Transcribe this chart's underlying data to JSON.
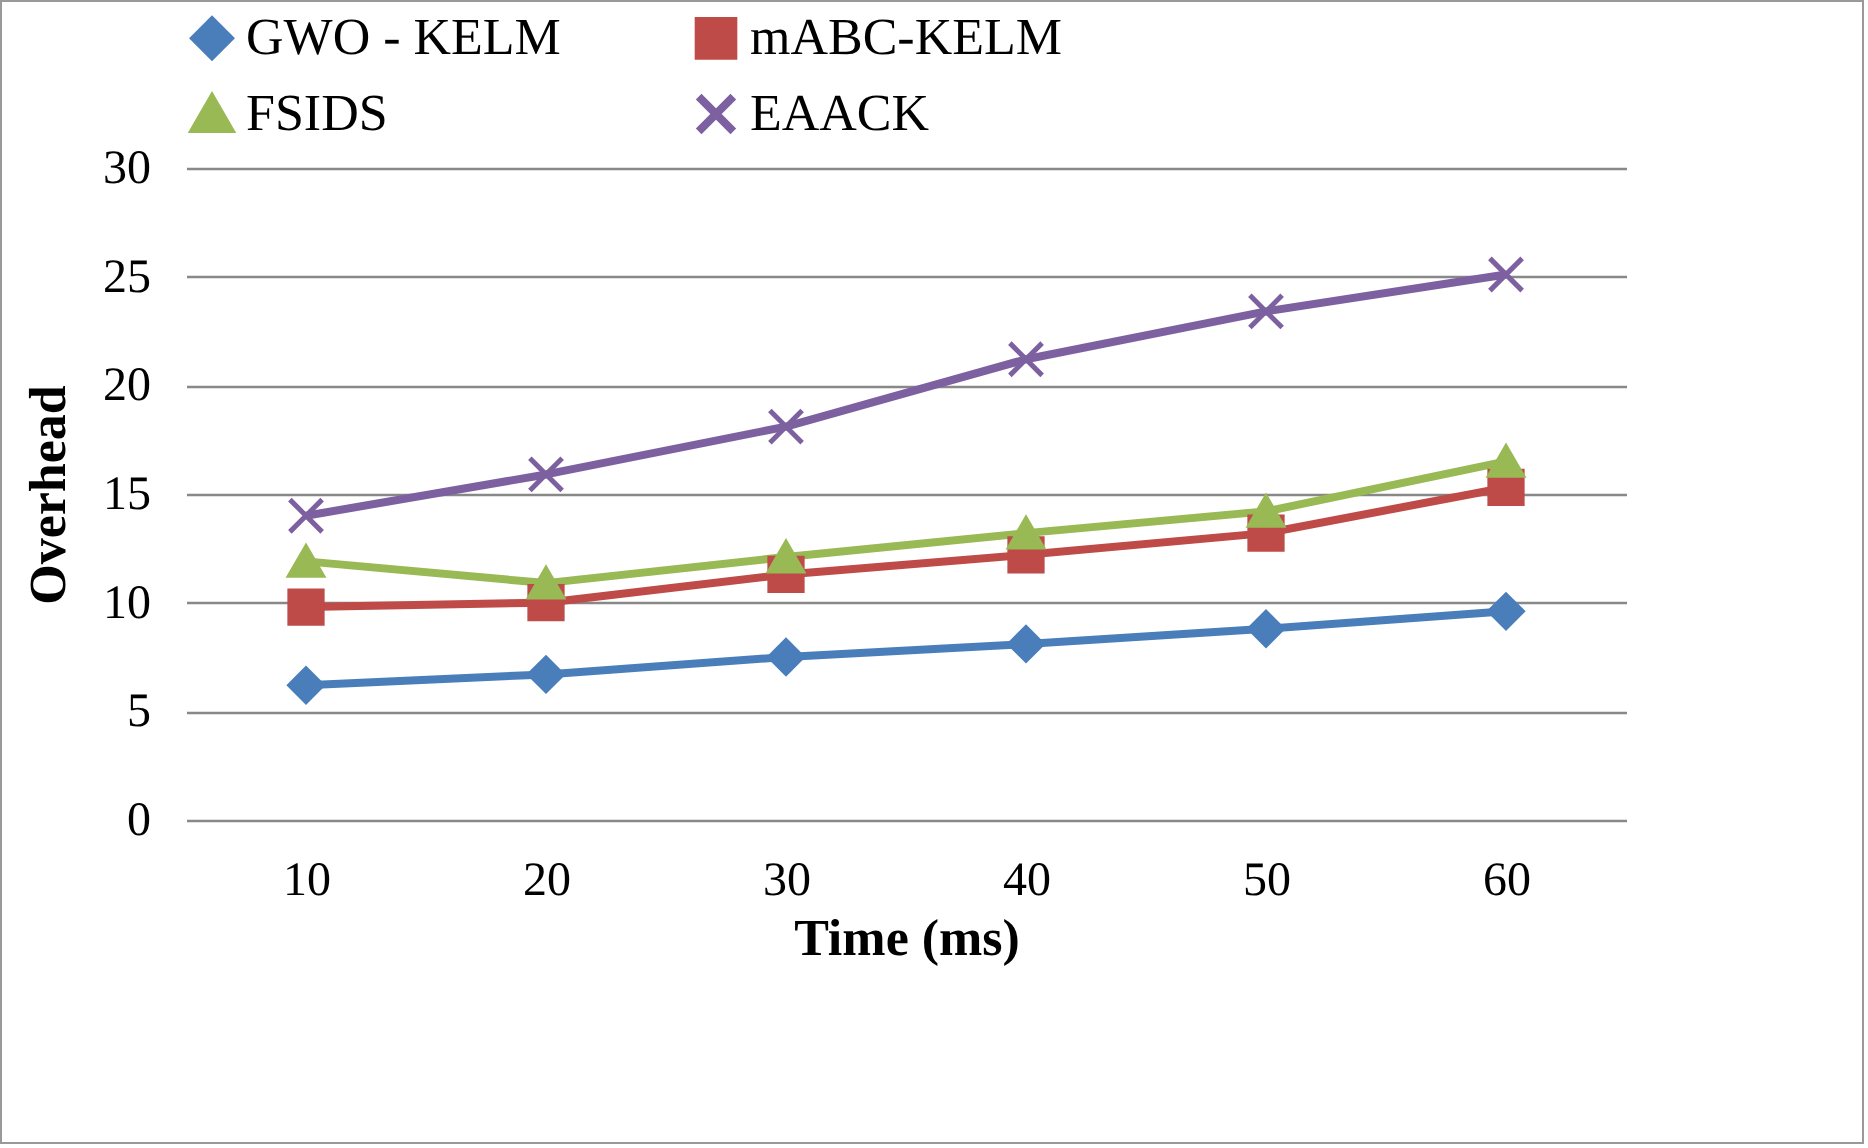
{
  "chart_data": {
    "type": "line",
    "xlabel": "Time (ms)",
    "ylabel": "Overhead",
    "categories": [
      "10",
      "20",
      "30",
      "40",
      "50",
      "60"
    ],
    "series": [
      {
        "name": "GWO - KELM",
        "color": "#4a7ebb",
        "marker": "diamond",
        "values": [
          6.2,
          6.7,
          7.5,
          8.1,
          8.8,
          9.6
        ]
      },
      {
        "name": "mABC-KELM",
        "color": "#be4b48",
        "marker": "square",
        "values": [
          9.8,
          10.0,
          11.3,
          12.2,
          13.2,
          15.3
        ]
      },
      {
        "name": "FSIDS",
        "color": "#98b954",
        "marker": "triangle",
        "values": [
          11.9,
          10.9,
          12.1,
          13.2,
          14.2,
          16.5
        ]
      },
      {
        "name": "EAACK",
        "color": "#7d60a0",
        "marker": "cross",
        "values": [
          14.0,
          15.9,
          18.1,
          21.2,
          23.4,
          25.1
        ]
      }
    ],
    "ylim": [
      0,
      30
    ],
    "yticks": [
      0,
      5,
      10,
      15,
      20,
      25,
      30
    ],
    "grid": "y",
    "legend": "top",
    "line_style": "solid"
  }
}
